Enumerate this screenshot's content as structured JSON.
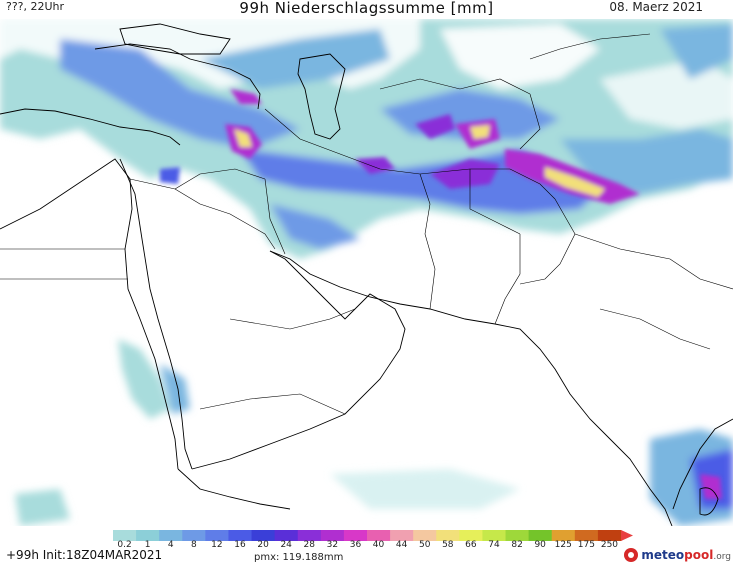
{
  "header": {
    "left_label": "???, 22Uhr",
    "title": "99h Niederschlagssumme [mm]",
    "date": "08. Maerz 2021"
  },
  "legend": {
    "ticks": [
      "0.2",
      "1",
      "4",
      "8",
      "12",
      "16",
      "20",
      "24",
      "28",
      "32",
      "36",
      "40",
      "44",
      "50",
      "58",
      "66",
      "74",
      "82",
      "90",
      "125",
      "175",
      "250"
    ],
    "colors": [
      "#a8dcdc",
      "#8ccfd8",
      "#7ab6e0",
      "#6e9ae6",
      "#5f7de8",
      "#4b5be6",
      "#3a3fd8",
      "#5a2fd8",
      "#8a2fd8",
      "#b02fd0",
      "#d838c8",
      "#e860b0",
      "#f0a0b0",
      "#f4c8a0",
      "#f2e07a",
      "#e6ef5a",
      "#c6e84a",
      "#9ed83a",
      "#74c42a",
      "#e0a030",
      "#d06a20",
      "#c04010"
    ]
  },
  "footer": {
    "run": "+99h Init:18Z04MAR2021",
    "pmax": "pmx: 119.188mm"
  },
  "logo": {
    "brand_a": "meteo",
    "brand_b": "pool",
    "tld": ".org"
  },
  "map": {
    "region": "Middle East, Arabian Peninsula, Iran, Afghanistan, Pakistan and India",
    "ocean_color": "#ffffff",
    "border_color": "#000000"
  }
}
